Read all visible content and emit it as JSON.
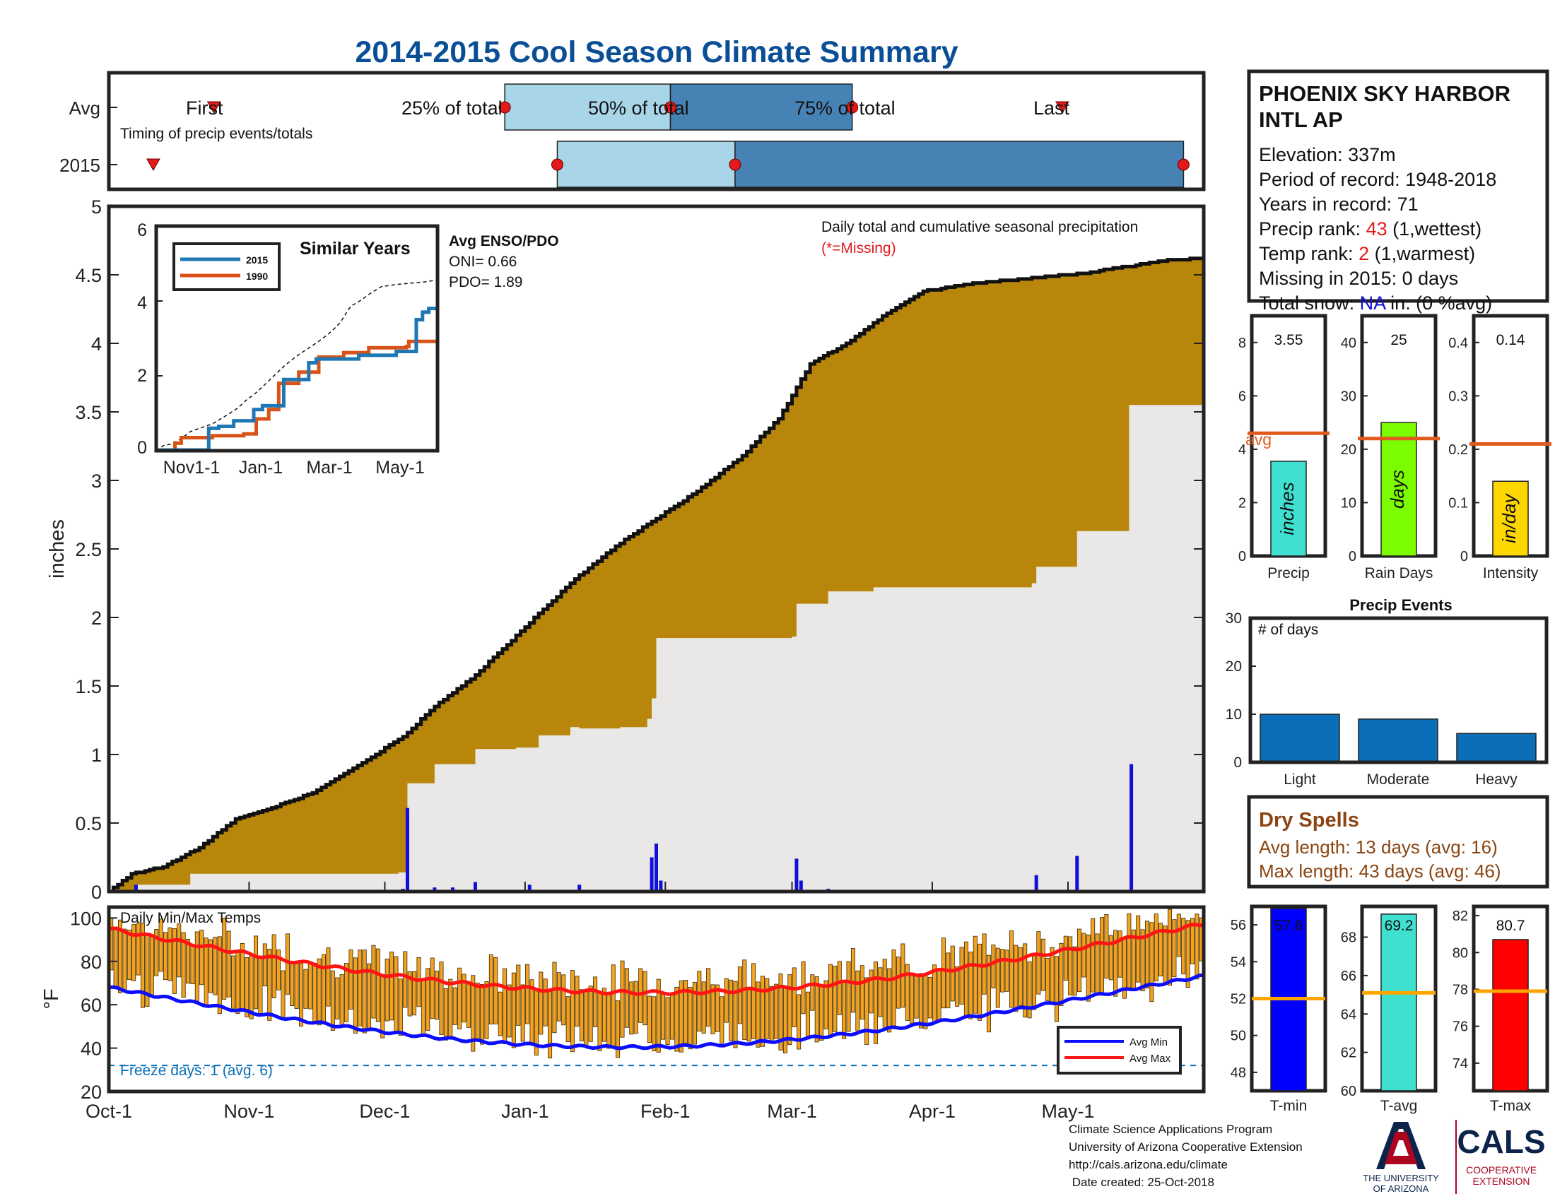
{
  "title": "2014-2015 Cool Season Climate Summary",
  "colors": {
    "title": "#0a4e96",
    "cum2015": "#b8860b",
    "cum_avg_fill": "#e9e8e7",
    "avg_line": "#1010d8",
    "daily_bar": "#1010d8",
    "temp_bar": "#f2a120",
    "avg_min": "#0c0cff",
    "avg_max": "#ff1414",
    "timing_light": "#a9d5e8",
    "timing_dark": "#4682b4",
    "red_marker": "#e31a1c",
    "precip_bar": "#40e0d0",
    "raindays_bar": "#7cfc00",
    "intensity_bar": "#ffd700",
    "avg_ref": "#e05a1e",
    "event_bar": "#0a6eb8",
    "tmin_bar": "#0000ff",
    "tavg_bar": "#40e0d0",
    "tmax_bar": "#ff0000",
    "temp_ref": "#ffa500",
    "dry_text": "#8b4513",
    "brown_ref": "#e05a1e",
    "freeze": "#0a6eb8"
  },
  "timing": {
    "ytick_labels": [
      "Avg",
      "2015"
    ],
    "subtitle": "Timing of precip events/totals",
    "avg_labels": {
      "first": "First",
      "p25": "25% of total",
      "p50": "50% of total",
      "p75": "75% of total",
      "last": "Last"
    },
    "avg_days": {
      "first": 52,
      "p25": 196,
      "p50": 278,
      "p75": 368,
      "last": 472
    },
    "y2015_days": {
      "first": 22,
      "p25": 222,
      "p50": 310,
      "last": 532
    }
  },
  "main_chart": {
    "ylabel": "inches",
    "yticks": [
      "0",
      "0.5",
      "1",
      "1.5",
      "2",
      "2.5",
      "3",
      "3.5",
      "4",
      "4.5",
      "5"
    ],
    "ylim": [
      0,
      5
    ],
    "xticks": [
      {
        "label": "Oct-1",
        "day": 0
      },
      {
        "label": "Nov-1",
        "day": 31
      },
      {
        "label": "Dec-1",
        "day": 61
      },
      {
        "label": "Jan-1",
        "day": 92
      },
      {
        "label": "Feb-1",
        "day": 123
      },
      {
        "label": "Mar-1",
        "day": 151
      },
      {
        "label": "Apr-1",
        "day": 182
      },
      {
        "label": "May-1",
        "day": 212
      }
    ],
    "xlim": [
      0,
      242
    ],
    "annotation": "Daily total and cumulative seasonal precipitation",
    "missing_note": "(*=Missing)",
    "enso": {
      "title": "Avg ENSO/PDO",
      "oni": "ONI= 0.66",
      "pdo": "PDO= 1.89"
    }
  },
  "chart_data": [
    {
      "type": "area",
      "title": "Daily total and cumulative seasonal precipitation",
      "ylabel": "inches",
      "xlim_days": [
        0,
        242
      ],
      "ylim": [
        0,
        5
      ],
      "cumulative_avg_knots": [
        [
          0,
          0
        ],
        [
          5,
          0.13
        ],
        [
          12,
          0.18
        ],
        [
          20,
          0.32
        ],
        [
          28,
          0.53
        ],
        [
          35,
          0.6
        ],
        [
          45,
          0.72
        ],
        [
          55,
          0.92
        ],
        [
          65,
          1.13
        ],
        [
          72,
          1.35
        ],
        [
          80,
          1.55
        ],
        [
          88,
          1.8
        ],
        [
          95,
          2.03
        ],
        [
          103,
          2.28
        ],
        [
          112,
          2.52
        ],
        [
          120,
          2.7
        ],
        [
          130,
          2.92
        ],
        [
          140,
          3.18
        ],
        [
          148,
          3.45
        ],
        [
          155,
          3.85
        ],
        [
          163,
          4.0
        ],
        [
          172,
          4.22
        ],
        [
          180,
          4.38
        ],
        [
          192,
          4.44
        ],
        [
          205,
          4.48
        ],
        [
          215,
          4.51
        ],
        [
          225,
          4.56
        ],
        [
          235,
          4.61
        ],
        [
          242,
          4.62
        ]
      ],
      "cumulative_2015_steps": [
        [
          0,
          0
        ],
        [
          6,
          0.05
        ],
        [
          18,
          0.13
        ],
        [
          64,
          0.14
        ],
        [
          66,
          0.79
        ],
        [
          72,
          0.93
        ],
        [
          80,
          0.93
        ],
        [
          81,
          1.04
        ],
        [
          90,
          1.05
        ],
        [
          95,
          1.14
        ],
        [
          102,
          1.2
        ],
        [
          104,
          1.19
        ],
        [
          113,
          1.2
        ],
        [
          119,
          1.26
        ],
        [
          120,
          1.41
        ],
        [
          121,
          1.85
        ],
        [
          151,
          1.86
        ],
        [
          152,
          2.1
        ],
        [
          159,
          2.19
        ],
        [
          169,
          2.22
        ],
        [
          204,
          2.25
        ],
        [
          205,
          2.37
        ],
        [
          214,
          2.63
        ],
        [
          225,
          2.63
        ],
        [
          225.5,
          3.55
        ],
        [
          242,
          3.55
        ]
      ],
      "daily_2015": [
        [
          6,
          0.05
        ],
        [
          18,
          0.01
        ],
        [
          65,
          0.02
        ],
        [
          66,
          0.61
        ],
        [
          72,
          0.03
        ],
        [
          76,
          0.03
        ],
        [
          81,
          0.07
        ],
        [
          93,
          0.05
        ],
        [
          104,
          0.05
        ],
        [
          120,
          0.25
        ],
        [
          121,
          0.35
        ],
        [
          122,
          0.08
        ],
        [
          152,
          0.24
        ],
        [
          153,
          0.08
        ],
        [
          159,
          0.02
        ],
        [
          205,
          0.12
        ],
        [
          214,
          0.26
        ],
        [
          226,
          0.93
        ]
      ]
    },
    {
      "type": "line",
      "title": "Similar Years",
      "series_names": [
        "2015",
        "1990"
      ],
      "xticks": [
        "Nov1-1",
        "Jan-1",
        "Mar-1",
        "May-1"
      ],
      "yticks": [
        "0",
        "2",
        "4",
        "6"
      ],
      "ylim": [
        0,
        6
      ]
    },
    {
      "type": "bar",
      "categories": [
        "Precip",
        "Rain Days",
        "Intensity"
      ],
      "values": [
        3.55,
        25,
        0.14
      ],
      "units": [
        "inches",
        "days",
        "in/day"
      ],
      "avg": [
        4.6,
        22,
        0.21
      ],
      "ylims": [
        [
          0,
          9
        ],
        [
          0,
          45
        ],
        [
          0,
          0.45
        ]
      ]
    },
    {
      "type": "bar",
      "title": "Precip Events",
      "ylabel": "# of days",
      "categories": [
        "Light",
        "Moderate",
        "Heavy"
      ],
      "values": [
        10,
        9,
        6
      ],
      "ylim": [
        0,
        30
      ]
    },
    {
      "type": "bar",
      "title": "Daily Min/Max Temps",
      "ylabel": "°F",
      "ylim": [
        20,
        105
      ],
      "yticks": [
        20,
        40,
        60,
        80,
        100
      ],
      "freeze_line": 32,
      "series": [
        "Avg Min",
        "Avg Max"
      ]
    },
    {
      "type": "bar",
      "categories": [
        "T-min",
        "T-avg",
        "T-max"
      ],
      "values": [
        57.6,
        69.2,
        80.7
      ],
      "avg": [
        52,
        65.1,
        77.9
      ],
      "ylims": [
        [
          47,
          57
        ],
        [
          60,
          69.6
        ],
        [
          72.5,
          82.5
        ]
      ]
    }
  ],
  "similar_years": {
    "title": "Similar Years",
    "legend": [
      "2015",
      "1990"
    ],
    "yticks": [
      "0",
      "2",
      "4",
      "6"
    ],
    "xticks": [
      "Nov1-1",
      "Jan-1",
      "Mar-1",
      "May-1"
    ]
  },
  "station": {
    "name_line1": "PHOENIX SKY HARBOR",
    "name_line2": "INTL AP",
    "elevation": "Elevation: 337m",
    "period": "Period of record: 1948-2018",
    "years": "Years in record: 71",
    "precip_rank_label": "Precip rank: ",
    "precip_rank_value": "43",
    "precip_rank_suffix": " (1,wettest)",
    "temp_rank_label": "Temp rank: ",
    "temp_rank_value": "2",
    "temp_rank_suffix": " (1,warmest)",
    "missing": "Missing in 2015: 0 days",
    "snow_label": "Total snow: ",
    "snow_value": "NA",
    "snow_suffix": " in. (0 %avg)"
  },
  "summary_bars": {
    "precip": {
      "xlabel": "Precip",
      "value_label": "3.55",
      "unit": "inches",
      "avg_label": "avg",
      "yticks": [
        "0",
        "2",
        "4",
        "6",
        "8"
      ]
    },
    "raindays": {
      "xlabel": "Rain Days",
      "value_label": "25",
      "unit": "days",
      "yticks": [
        "0",
        "10",
        "20",
        "30",
        "40"
      ]
    },
    "intensity": {
      "xlabel": "Intensity",
      "value_label": "0.14",
      "unit": "in/day",
      "yticks": [
        "0",
        "0.1",
        "0.2",
        "0.3",
        "0.4"
      ]
    }
  },
  "events": {
    "title": "Precip Events",
    "ylabel": "# of days",
    "yticks": [
      "0",
      "10",
      "20",
      "30"
    ]
  },
  "dry_spells": {
    "title": "Dry Spells",
    "avg_length": "Avg length: 13 days (avg: 16)",
    "max_length": "Max length: 43 days (avg: 46)"
  },
  "temps": {
    "title": "Daily Min/Max Temps",
    "ylabel": "°F",
    "yticks": [
      "20",
      "40",
      "60",
      "80",
      "100"
    ],
    "freeze_text": "Freeze days: 1 (avg. 6)",
    "legend": [
      "Avg Min",
      "Avg Max"
    ]
  },
  "temp_bars": {
    "tmin": {
      "xlabel": "T-min",
      "value_label": "57.6",
      "yticks": [
        "48",
        "50",
        "52",
        "54",
        "56"
      ]
    },
    "tavg": {
      "xlabel": "T-avg",
      "value_label": "69.2",
      "yticks": [
        "60",
        "62",
        "64",
        "66",
        "68"
      ]
    },
    "tmax": {
      "xlabel": "T-max",
      "value_label": "80.7",
      "yticks": [
        "74",
        "76",
        "78",
        "80",
        "82"
      ]
    }
  },
  "footer": {
    "line1": "Climate Science Applications Program",
    "line2": "University of Arizona Cooperative Extension",
    "line3": "http://cals.arizona.edu/climate",
    "line4": " Date created: 25-Oct-2018",
    "ua_line1": "THE UNIVERSITY",
    "ua_line2": "OF ARIZONA",
    "cals": "CALS",
    "coop1": "COOPERATIVE",
    "coop2": "EXTENSION"
  }
}
